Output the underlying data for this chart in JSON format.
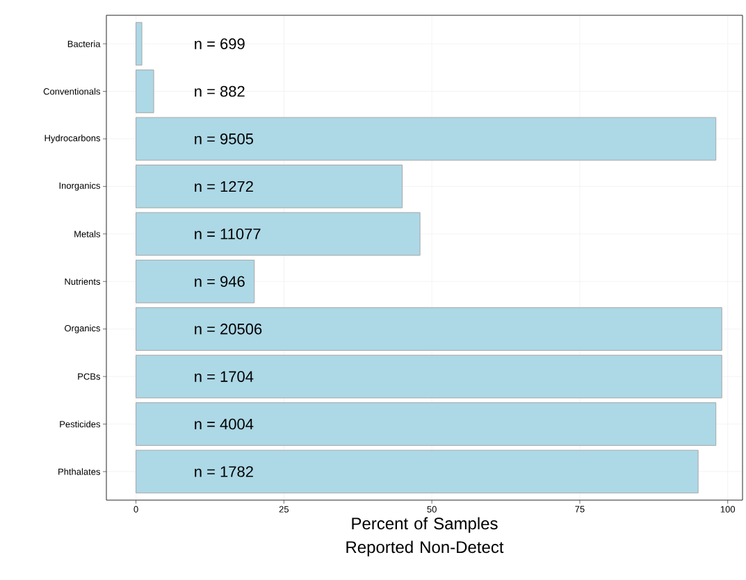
{
  "chart_data": {
    "type": "bar",
    "orientation": "horizontal",
    "xlabel": "Percent of Samples Reported Non-Detect",
    "categories": [
      "Bacteria",
      "Conventionals",
      "Hydrocarbons",
      "Inorganics",
      "Metals",
      "Nutrients",
      "Organics",
      "PCBs",
      "Pesticides",
      "Phthalates"
    ],
    "values": [
      1,
      3,
      98,
      45,
      48,
      20,
      99,
      99,
      98,
      95
    ],
    "color": "#add8e6",
    "xlim": [
      -5,
      102.5
    ],
    "xticks": [
      0,
      25,
      50,
      75,
      100
    ],
    "grid": true,
    "annotations": [
      "n = 699",
      "n = 882",
      "n = 9505",
      "n = 1272",
      "n = 11077",
      "n = 946",
      "n = 20506",
      "n = 1704",
      "n = 4004",
      "n = 1782"
    ]
  }
}
